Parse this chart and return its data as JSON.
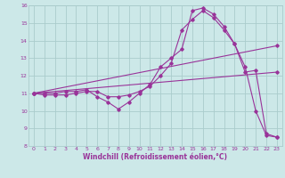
{
  "xlabel": "Windchill (Refroidissement éolien,°C)",
  "xlim": [
    -0.5,
    23.5
  ],
  "ylim": [
    8,
    16
  ],
  "xticks": [
    0,
    1,
    2,
    3,
    4,
    5,
    6,
    7,
    8,
    9,
    10,
    11,
    12,
    13,
    14,
    15,
    16,
    17,
    18,
    19,
    20,
    21,
    22,
    23
  ],
  "yticks": [
    8,
    9,
    10,
    11,
    12,
    13,
    14,
    15,
    16
  ],
  "bg_color": "#cce8e8",
  "line_color": "#993399",
  "grid_color": "#aacccc",
  "series1_x": [
    0,
    1,
    2,
    3,
    4,
    5,
    6,
    7,
    8,
    9,
    10,
    11,
    12,
    13,
    14,
    15,
    16,
    17,
    18,
    19,
    20,
    21,
    22,
    23
  ],
  "series1_y": [
    11.0,
    11.0,
    11.0,
    11.1,
    11.1,
    11.2,
    10.8,
    10.5,
    10.1,
    10.5,
    11.0,
    11.5,
    12.5,
    13.0,
    13.5,
    15.7,
    15.85,
    15.5,
    14.8,
    13.8,
    12.5,
    10.0,
    8.6,
    8.5
  ],
  "series2_x": [
    0,
    1,
    2,
    3,
    4,
    5,
    6,
    7,
    8,
    9,
    10,
    11,
    12,
    13,
    14,
    15,
    16,
    17,
    18,
    19,
    20,
    21,
    22,
    23
  ],
  "series2_y": [
    11.0,
    10.9,
    10.9,
    10.9,
    11.0,
    11.1,
    11.1,
    10.8,
    10.8,
    10.9,
    11.1,
    11.4,
    12.0,
    12.7,
    14.6,
    15.2,
    15.7,
    15.3,
    14.6,
    13.8,
    12.2,
    12.3,
    8.7,
    8.5
  ],
  "series3_x": [
    0,
    23
  ],
  "series3_y": [
    11.0,
    13.7
  ],
  "series4_x": [
    0,
    23
  ],
  "series4_y": [
    11.0,
    12.2
  ]
}
